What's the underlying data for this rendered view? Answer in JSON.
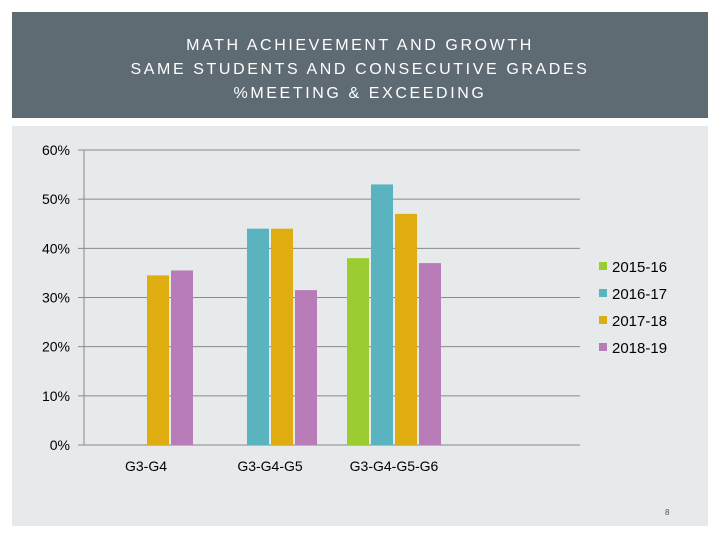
{
  "slide": {
    "title_lines": [
      "MATH ACHIEVEMENT AND GROWTH",
      "SAME STUDENTS AND CONSECUTIVE GRADES",
      "%MEETING & EXCEEDING"
    ],
    "page_number": "8"
  },
  "chart_data": {
    "type": "bar",
    "categories": [
      "G3-G4",
      "G3-G4-G5",
      "G3-G4-G5-G6"
    ],
    "series": [
      {
        "name": "2015-16",
        "color": "#9acd32",
        "values": [
          null,
          null,
          38
        ]
      },
      {
        "name": "2016-17",
        "color": "#5ab4bf",
        "values": [
          null,
          44,
          53
        ]
      },
      {
        "name": "2017-18",
        "color": "#e0ad11",
        "values": [
          34.5,
          44,
          47
        ]
      },
      {
        "name": "2018-19",
        "color": "#b87db8",
        "values": [
          35.5,
          31.5,
          37
        ]
      }
    ],
    "y_ticks": [
      "0%",
      "10%",
      "20%",
      "30%",
      "40%",
      "50%",
      "60%"
    ],
    "ylim": [
      0,
      60
    ],
    "grid": true,
    "legend_position": "right"
  }
}
